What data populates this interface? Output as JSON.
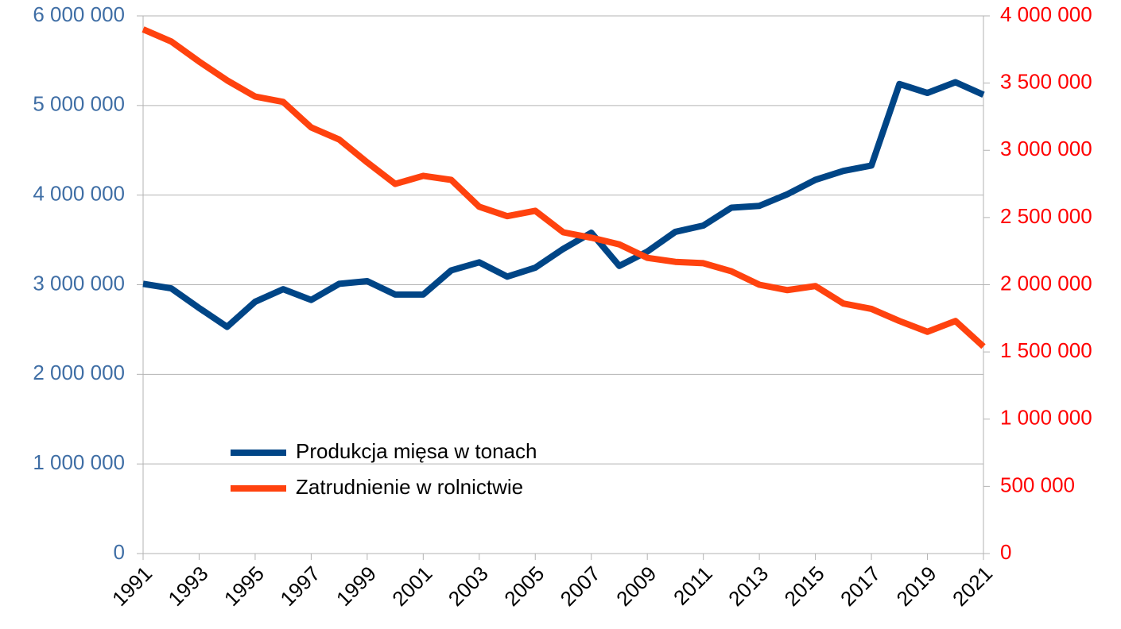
{
  "chart_data": {
    "type": "line",
    "x": [
      1991,
      1992,
      1993,
      1994,
      1995,
      1996,
      1997,
      1998,
      1999,
      2000,
      2001,
      2002,
      2003,
      2004,
      2005,
      2006,
      2007,
      2008,
      2009,
      2010,
      2011,
      2012,
      2013,
      2014,
      2015,
      2016,
      2017,
      2018,
      2019,
      2020,
      2021
    ],
    "xlim": [
      1991,
      2021
    ],
    "xticks": [
      1991,
      1993,
      1995,
      1997,
      1999,
      2001,
      2003,
      2005,
      2007,
      2009,
      2011,
      2013,
      2015,
      2017,
      2019,
      2021
    ],
    "ylim": [
      0,
      6000000
    ],
    "yticks": [
      {
        "value": 0,
        "label": "0"
      },
      {
        "value": 1000000,
        "label": "1 000 000"
      },
      {
        "value": 2000000,
        "label": "2 000 000"
      },
      {
        "value": 3000000,
        "label": "3 000 000"
      },
      {
        "value": 4000000,
        "label": "4 000 000"
      },
      {
        "value": 5000000,
        "label": "5 000 000"
      },
      {
        "value": 6000000,
        "label": "6 000 000"
      }
    ],
    "y2lim": [
      0,
      4000000
    ],
    "y2ticks": [
      {
        "value": 0,
        "label": "0"
      },
      {
        "value": 500000,
        "label": "500 000"
      },
      {
        "value": 1000000,
        "label": "1 000 000"
      },
      {
        "value": 1500000,
        "label": "1 500 000"
      },
      {
        "value": 2000000,
        "label": "2 000 000"
      },
      {
        "value": 2500000,
        "label": "2 500 000"
      },
      {
        "value": 3000000,
        "label": "3 000 000"
      },
      {
        "value": 3500000,
        "label": "3 500 000"
      },
      {
        "value": 4000000,
        "label": "4 000 000"
      }
    ],
    "ytick_color": "#3f6ea5",
    "y2tick_color": "#ff0000",
    "grid": true,
    "series": [
      {
        "name": "Produkcja mięsa w tonach",
        "color": "#004586",
        "values": [
          3010000,
          2960000,
          2740000,
          2530000,
          2810000,
          2950000,
          2830000,
          3010000,
          3040000,
          2890000,
          2890000,
          3160000,
          3250000,
          3090000,
          3190000,
          3400000,
          3580000,
          3210000,
          3370000,
          3590000,
          3660000,
          3860000,
          3880000,
          4010000,
          4170000,
          4270000,
          4330000,
          5240000,
          5140000,
          5260000,
          5120000
        ]
      },
      {
        "name": "Zatrudnienie w rolnictwie",
        "color": "#ff420e",
        "axis": "y2",
        "values": [
          3900000,
          3810000,
          3660000,
          3520000,
          3400000,
          3360000,
          3170000,
          3080000,
          2910000,
          2750000,
          2810000,
          2780000,
          2580000,
          2510000,
          2550000,
          2390000,
          2350000,
          2300000,
          2200000,
          2170000,
          2160000,
          2100000,
          2000000,
          1960000,
          1990000,
          1860000,
          1820000,
          1730000,
          1650000,
          1730000,
          1540000
        ]
      }
    ]
  }
}
